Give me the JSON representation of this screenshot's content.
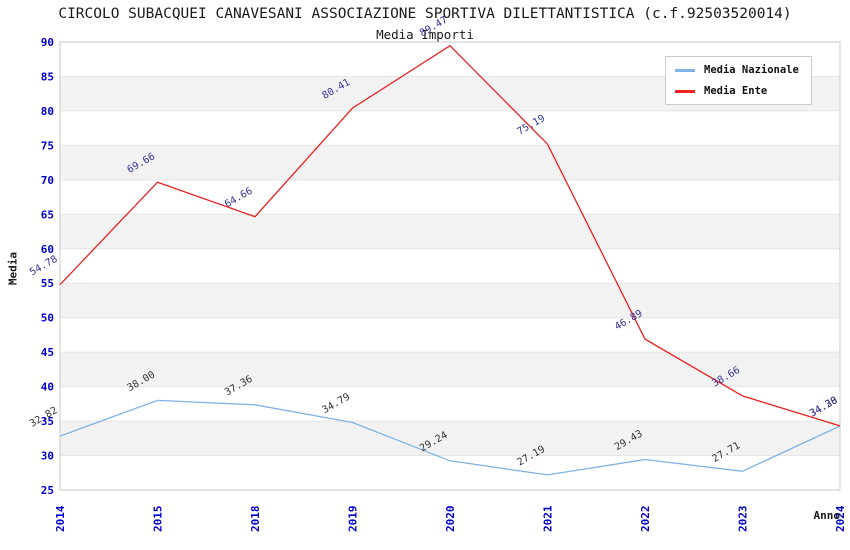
{
  "title": "CIRCOLO SUBACQUEI CANAVESANI ASSOCIAZIONE SPORTIVA DILETTANTISTICA (c.f.92503520014)",
  "subtitle": "Media Importi",
  "axes": {
    "x_label": "Anno",
    "y_label": "Media"
  },
  "legend": {
    "items": [
      {
        "label": "Media Nazionale",
        "color": "#7fb4e6"
      },
      {
        "label": "Media Ente",
        "color": "#ee2020"
      }
    ]
  },
  "chart_data": {
    "type": "line",
    "title": "Media Importi",
    "xlabel": "Anno",
    "ylabel": "Media",
    "categories": [
      "2014",
      "2015",
      "2018",
      "2019",
      "2020",
      "2021",
      "2022",
      "2023",
      "2024"
    ],
    "series": [
      {
        "name": "Media Nazionale",
        "color": "#7fb4e6",
        "label_color": "#333333",
        "values": [
          32.82,
          38.0,
          37.36,
          34.79,
          29.24,
          27.19,
          29.43,
          27.71,
          34.28
        ]
      },
      {
        "name": "Media Ente",
        "color": "#ee2020",
        "label_color": "#333399",
        "values": [
          54.78,
          69.66,
          64.66,
          80.41,
          89.47,
          75.19,
          46.89,
          38.66,
          34.3
        ]
      }
    ],
    "ylim": [
      25,
      90
    ],
    "ytick_step": 5,
    "grid": true,
    "band_fill": "#f2f2f2",
    "grid_color": "#e6e6e6",
    "border_color": "#c9c9c9",
    "tick_color": "#0000cc",
    "legend_position": "top-right"
  }
}
